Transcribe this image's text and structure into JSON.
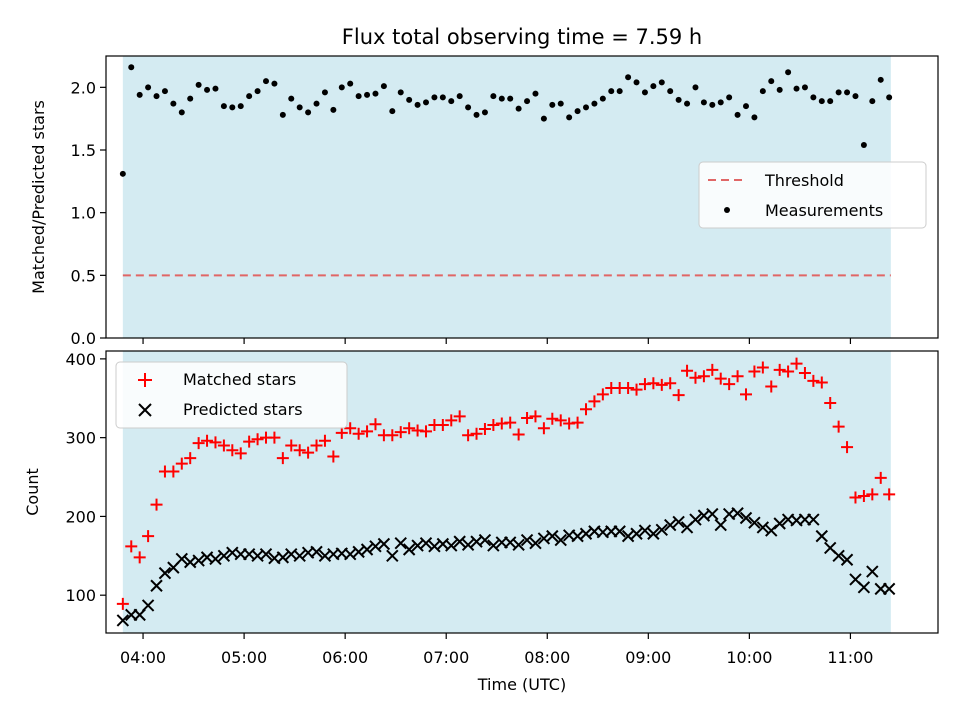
{
  "chart_data": [
    {
      "type": "scatter",
      "title": "Flux total observing time = 7.59 h",
      "ylabel": "Matched/Predicted stars",
      "xlabel": "",
      "xlim": [
        "03:38",
        "11:52"
      ],
      "ylim": [
        0,
        2.25
      ],
      "yticks": [
        0,
        0.5,
        1.0,
        1.5,
        2.0
      ],
      "ytick_labels": [
        "0.0",
        "0.5",
        "1.0",
        "1.5",
        "2.0"
      ],
      "shaded_span": [
        "03:48",
        "11:24"
      ],
      "shade_color": "#add8e6",
      "grid": false,
      "legend_position": "center-right",
      "threshold": {
        "name": "Threshold",
        "value": 0.5,
        "color": "#e06666",
        "style": "dashed"
      },
      "series": [
        {
          "name": "Measurements",
          "color": "#000000",
          "x": [
            "03:48",
            "03:53",
            "03:58",
            "04:03",
            "04:08",
            "04:13",
            "04:18",
            "04:23",
            "04:28",
            "04:33",
            "04:38",
            "04:43",
            "04:48",
            "04:53",
            "04:58",
            "05:03",
            "05:08",
            "05:13",
            "05:18",
            "05:23",
            "05:28",
            "05:33",
            "05:38",
            "05:43",
            "05:48",
            "05:53",
            "05:58",
            "06:03",
            "06:08",
            "06:13",
            "06:18",
            "06:23",
            "06:28",
            "06:33",
            "06:38",
            "06:43",
            "06:48",
            "06:53",
            "06:58",
            "07:03",
            "07:08",
            "07:13",
            "07:18",
            "07:23",
            "07:28",
            "07:33",
            "07:38",
            "07:43",
            "07:48",
            "07:53",
            "07:58",
            "08:03",
            "08:08",
            "08:13",
            "08:18",
            "08:23",
            "08:28",
            "08:33",
            "08:38",
            "08:43",
            "08:48",
            "08:53",
            "08:58",
            "09:03",
            "09:08",
            "09:13",
            "09:18",
            "09:23",
            "09:28",
            "09:33",
            "09:38",
            "09:43",
            "09:48",
            "09:53",
            "09:58",
            "10:03",
            "10:08",
            "10:13",
            "10:18",
            "10:23",
            "10:28",
            "10:33",
            "10:38",
            "10:43",
            "10:48",
            "10:53",
            "10:58",
            "11:03",
            "11:08",
            "11:13",
            "11:18",
            "11:23"
          ],
          "y": [
            1.31,
            2.16,
            1.94,
            2.0,
            1.93,
            1.97,
            1.87,
            1.8,
            1.91,
            2.02,
            1.98,
            1.99,
            1.85,
            1.84,
            1.85,
            1.93,
            1.97,
            2.05,
            2.03,
            1.78,
            1.91,
            1.84,
            1.8,
            1.87,
            1.96,
            1.82,
            2.0,
            2.03,
            1.93,
            1.94,
            1.95,
            2.01,
            1.81,
            1.96,
            1.9,
            1.86,
            1.88,
            1.92,
            1.92,
            1.89,
            1.93,
            1.84,
            1.78,
            1.8,
            1.93,
            1.91,
            1.91,
            1.83,
            1.89,
            1.95,
            1.75,
            1.86,
            1.87,
            1.76,
            1.81,
            1.84,
            1.87,
            1.91,
            1.97,
            1.97,
            2.08,
            2.04,
            1.96,
            2.01,
            2.04,
            1.97,
            1.9,
            1.87,
            2.0,
            1.88,
            1.86,
            1.88,
            1.92,
            1.78,
            1.85,
            1.76,
            1.97,
            2.05,
            1.98,
            2.12,
            1.99,
            2.0,
            1.92,
            1.89,
            1.89,
            1.96,
            1.96,
            1.93,
            1.54,
            1.89,
            2.06,
            1.92
          ]
        }
      ]
    },
    {
      "type": "scatter",
      "title": "",
      "xlabel": "Time (UTC)",
      "ylabel": "Count",
      "xlim": [
        "03:38",
        "11:52"
      ],
      "ylim": [
        52,
        410
      ],
      "xticks": [
        "04:00",
        "05:00",
        "06:00",
        "07:00",
        "08:00",
        "09:00",
        "10:00",
        "11:00"
      ],
      "yticks": [
        100,
        200,
        300,
        400
      ],
      "ytick_labels": [
        "100",
        "200",
        "300",
        "400"
      ],
      "shaded_span": [
        "03:48",
        "11:24"
      ],
      "shade_color": "#add8e6",
      "grid": false,
      "legend_position": "top-left",
      "series": [
        {
          "name": "Matched stars",
          "color": "#ff0000",
          "marker": "plus",
          "x": [
            "03:48",
            "03:53",
            "03:58",
            "04:03",
            "04:08",
            "04:13",
            "04:18",
            "04:23",
            "04:28",
            "04:33",
            "04:38",
            "04:43",
            "04:48",
            "04:53",
            "04:58",
            "05:03",
            "05:08",
            "05:13",
            "05:18",
            "05:23",
            "05:28",
            "05:33",
            "05:38",
            "05:43",
            "05:48",
            "05:53",
            "05:58",
            "06:03",
            "06:08",
            "06:13",
            "06:18",
            "06:23",
            "06:28",
            "06:33",
            "06:38",
            "06:43",
            "06:48",
            "06:53",
            "06:58",
            "07:03",
            "07:08",
            "07:13",
            "07:18",
            "07:23",
            "07:28",
            "07:33",
            "07:38",
            "07:43",
            "07:48",
            "07:53",
            "07:58",
            "08:03",
            "08:08",
            "08:13",
            "08:18",
            "08:23",
            "08:28",
            "08:33",
            "08:38",
            "08:43",
            "08:48",
            "08:53",
            "08:58",
            "09:03",
            "09:08",
            "09:13",
            "09:18",
            "09:23",
            "09:28",
            "09:33",
            "09:38",
            "09:43",
            "09:48",
            "09:53",
            "09:58",
            "10:03",
            "10:08",
            "10:13",
            "10:18",
            "10:23",
            "10:28",
            "10:33",
            "10:38",
            "10:43",
            "10:48",
            "10:53",
            "10:58",
            "11:03",
            "11:08",
            "11:13",
            "11:18",
            "11:23"
          ],
          "y": [
            89,
            162,
            148,
            175,
            215,
            257,
            257,
            267,
            274,
            293,
            296,
            294,
            290,
            284,
            280,
            295,
            298,
            300,
            300,
            274,
            290,
            284,
            281,
            290,
            296,
            276,
            306,
            312,
            305,
            308,
            317,
            303,
            303,
            307,
            312,
            309,
            308,
            316,
            316,
            322,
            327,
            303,
            305,
            311,
            316,
            318,
            319,
            304,
            325,
            327,
            312,
            324,
            322,
            318,
            319,
            336,
            346,
            355,
            363,
            363,
            363,
            361,
            368,
            369,
            367,
            369,
            354,
            385,
            376,
            378,
            386,
            375,
            368,
            378,
            355,
            384,
            389,
            365,
            386,
            384,
            394,
            382,
            372,
            370,
            344,
            314,
            288,
            224,
            226,
            228,
            249,
            228
          ]
        },
        {
          "name": "Predicted stars",
          "color": "#000000",
          "marker": "x",
          "x": [
            "03:48",
            "03:53",
            "03:58",
            "04:03",
            "04:08",
            "04:13",
            "04:18",
            "04:23",
            "04:28",
            "04:33",
            "04:38",
            "04:43",
            "04:48",
            "04:53",
            "04:58",
            "05:03",
            "05:08",
            "05:13",
            "05:18",
            "05:23",
            "05:28",
            "05:33",
            "05:38",
            "05:43",
            "05:48",
            "05:53",
            "05:58",
            "06:03",
            "06:08",
            "06:13",
            "06:18",
            "06:23",
            "06:28",
            "06:33",
            "06:38",
            "06:43",
            "06:48",
            "06:53",
            "06:58",
            "07:03",
            "07:08",
            "07:13",
            "07:18",
            "07:23",
            "07:28",
            "07:33",
            "07:38",
            "07:43",
            "07:48",
            "07:53",
            "07:58",
            "08:03",
            "08:08",
            "08:13",
            "08:18",
            "08:23",
            "08:28",
            "08:33",
            "08:38",
            "08:43",
            "08:48",
            "08:53",
            "08:58",
            "09:03",
            "09:08",
            "09:13",
            "09:18",
            "09:23",
            "09:28",
            "09:33",
            "09:38",
            "09:43",
            "09:48",
            "09:53",
            "09:58",
            "10:03",
            "10:08",
            "10:13",
            "10:18",
            "10:23",
            "10:28",
            "10:33",
            "10:38",
            "10:43",
            "10:48",
            "10:53",
            "10:58",
            "11:03",
            "11:08",
            "11:13",
            "11:18",
            "11:23"
          ],
          "y": [
            68,
            75,
            75,
            87,
            112,
            128,
            135,
            146,
            142,
            144,
            148,
            146,
            150,
            154,
            152,
            152,
            150,
            152,
            147,
            148,
            152,
            150,
            154,
            155,
            150,
            152,
            153,
            152,
            155,
            158,
            162,
            165,
            150,
            166,
            158,
            163,
            166,
            162,
            165,
            163,
            168,
            164,
            168,
            170,
            163,
            167,
            167,
            164,
            170,
            166,
            172,
            175,
            170,
            176,
            175,
            178,
            181,
            180,
            181,
            181,
            175,
            178,
            182,
            178,
            183,
            189,
            193,
            186,
            196,
            201,
            203,
            189,
            203,
            204,
            198,
            192,
            186,
            182,
            191,
            196,
            195,
            196,
            196,
            175,
            160,
            150,
            145,
            120,
            110,
            130,
            108,
            108
          ]
        }
      ]
    }
  ]
}
